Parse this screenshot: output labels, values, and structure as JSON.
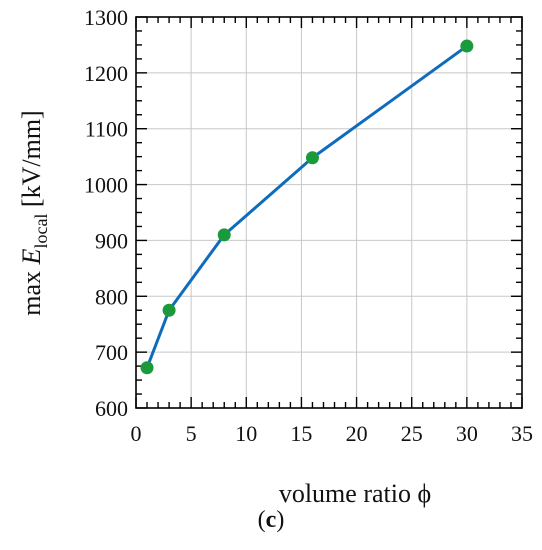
{
  "chart_data": {
    "type": "line",
    "title": "",
    "xlabel": "volume ratio ϕ",
    "ylabel_prefix": "max ",
    "ylabel_var": "E",
    "ylabel_sub": "local",
    "ylabel_unit": " [kV/mm]",
    "xlim": [
      0,
      35
    ],
    "ylim": [
      600,
      1300
    ],
    "xticks": [
      0,
      5,
      10,
      15,
      20,
      25,
      30,
      35
    ],
    "yticks": [
      600,
      700,
      800,
      900,
      1000,
      1100,
      1200,
      1300
    ],
    "x_minor_step": 1,
    "y_minor_step": 25,
    "grid": true,
    "series": [
      {
        "x": [
          1,
          3,
          8,
          16,
          30
        ],
        "values": [
          672,
          775,
          910,
          1048,
          1248
        ]
      }
    ],
    "colors": {
      "line": "#0f6cbd",
      "marker": "#1a9a3a",
      "grid": "#c8c8c8",
      "axis": "#000000"
    }
  },
  "panel_label": {
    "open": "(",
    "letter": "c",
    "close": ")"
  }
}
